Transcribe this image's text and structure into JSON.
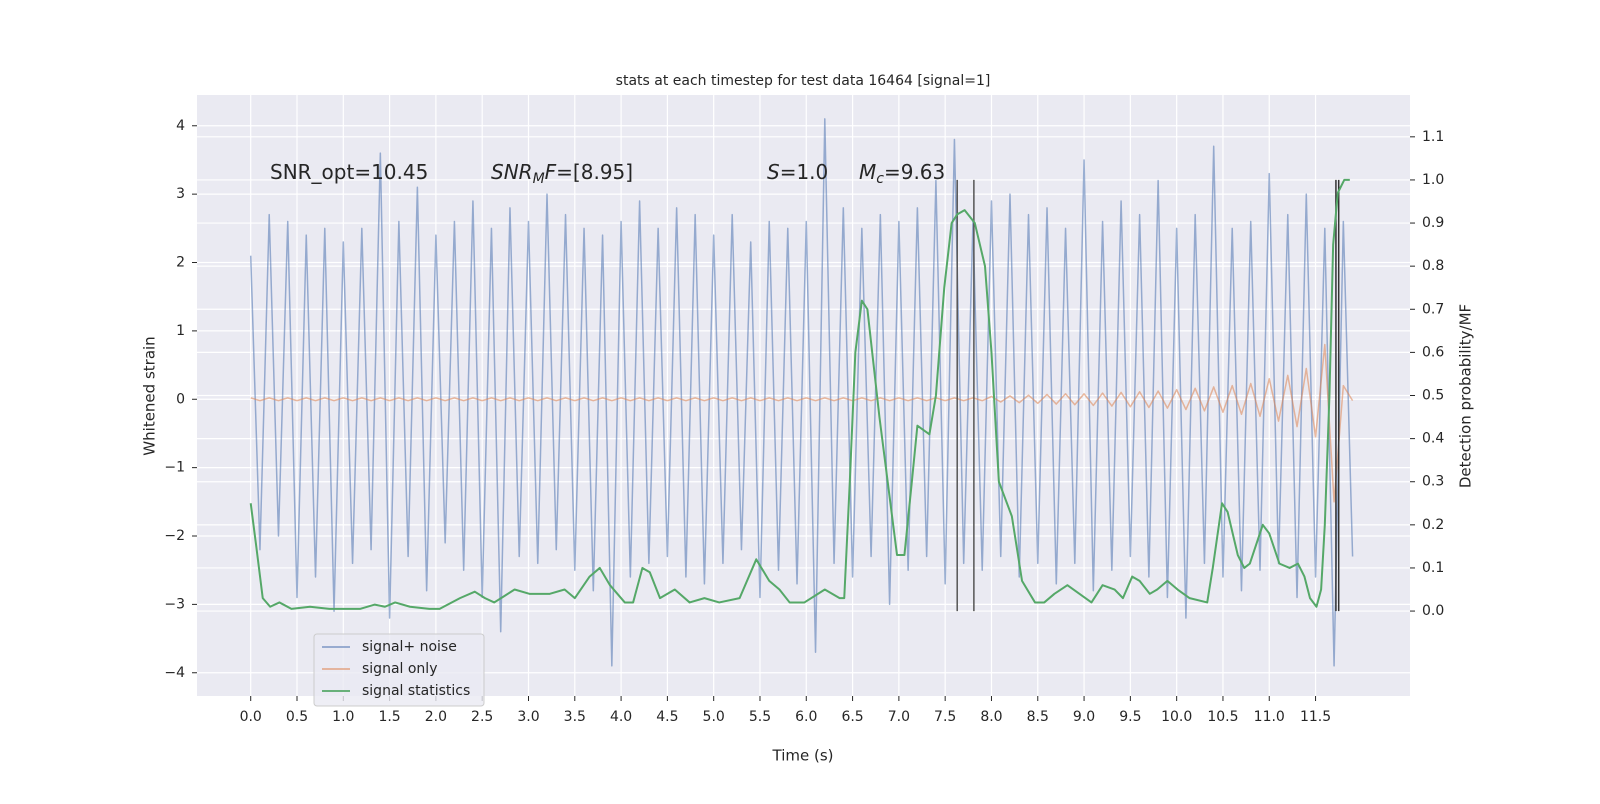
{
  "chart_data": {
    "type": "line",
    "title": "stats at each timestep for test data 16464 [signal=1]",
    "xlabel": "Time (s)",
    "ylabel": "Whitened strain",
    "y2label": "Detection probability/MF",
    "xlim": [
      -0.58,
      12.52
    ],
    "ylim": [
      -4.34,
      4.45
    ],
    "y2lim": [
      -0.197,
      1.197
    ],
    "xticks": [
      {
        "value": 0,
        "label": "0.0"
      },
      0.5,
      {
        "value": 1,
        "label": "1.0"
      },
      1.5,
      {
        "value": 2,
        "label": "2.0"
      },
      2.5,
      {
        "value": 3,
        "label": "3.0"
      },
      3.5,
      {
        "value": 4,
        "label": "4.0"
      },
      4.5,
      {
        "value": 5,
        "label": "5.0"
      },
      5.5,
      {
        "value": 6,
        "label": "6.0"
      },
      6.5,
      {
        "value": 7,
        "label": "7.0"
      },
      7.5,
      {
        "value": 8,
        "label": "8.0"
      },
      8.5,
      {
        "value": 9,
        "label": "9.0"
      },
      9.5,
      {
        "value": 10,
        "label": "10.0"
      },
      10.5,
      {
        "value": 11,
        "label": "11.0"
      },
      11.5
    ],
    "yticks": [
      {
        "value": -4,
        "label": "−4"
      },
      {
        "value": -3,
        "label": "−3"
      },
      {
        "value": -2,
        "label": "−2"
      },
      {
        "value": -1,
        "label": "−1"
      },
      0,
      1,
      2,
      3,
      4
    ],
    "y2ticks": [
      {
        "value": 0,
        "label": "0.0"
      },
      0.1,
      0.2,
      0.3,
      0.4,
      0.5,
      0.6,
      0.7,
      0.8,
      0.9,
      {
        "value": 1,
        "label": "1.0"
      },
      1.1
    ],
    "grid": true,
    "legend": "lower left",
    "annotations": [
      [
        {
          "text": "SNR_opt=10.45"
        }
      ],
      [
        {
          "text": "SNR",
          "style": "italic"
        },
        {
          "text": "M",
          "style": "sub"
        },
        {
          "text": "F",
          "style": "italic"
        },
        {
          "text": "=[8.95]"
        }
      ],
      [
        {
          "text": "S",
          "style": "italic"
        },
        {
          "text": "=1.0"
        }
      ],
      [
        {
          "text": "M",
          "style": "italic"
        },
        {
          "text": "c",
          "style": "sub"
        },
        {
          "text": "=9.63"
        }
      ]
    ],
    "vlines": {
      "x": [
        7.63,
        7.81,
        11.72,
        11.75
      ],
      "y2": [
        0,
        1.0
      ],
      "colors": [
        "#555555",
        "#555555",
        "#333333",
        "#333333"
      ]
    },
    "series": [
      {
        "name": "signal+ noise",
        "color": "#4c72b0",
        "axis": "y",
        "x": [
          0.0,
          0.1,
          0.2,
          0.3,
          0.4,
          0.5,
          0.6,
          0.7,
          0.8,
          0.9,
          1.0,
          1.1,
          1.2,
          1.3,
          1.4,
          1.5,
          1.6,
          1.7,
          1.8,
          1.9,
          2.0,
          2.1,
          2.2,
          2.3,
          2.4,
          2.5,
          2.6,
          2.7,
          2.8,
          2.9,
          3.0,
          3.1,
          3.2,
          3.3,
          3.4,
          3.5,
          3.6,
          3.7,
          3.8,
          3.9,
          4.0,
          4.1,
          4.2,
          4.3,
          4.4,
          4.5,
          4.6,
          4.7,
          4.8,
          4.9,
          5.0,
          5.1,
          5.2,
          5.3,
          5.4,
          5.5,
          5.6,
          5.7,
          5.8,
          5.9,
          6.0,
          6.1,
          6.2,
          6.3,
          6.4,
          6.5,
          6.6,
          6.7,
          6.8,
          6.9,
          7.0,
          7.1,
          7.2,
          7.3,
          7.4,
          7.5,
          7.6,
          7.7,
          7.8,
          7.9,
          8.0,
          8.1,
          8.2,
          8.3,
          8.4,
          8.5,
          8.6,
          8.7,
          8.8,
          8.9,
          9.0,
          9.1,
          9.2,
          9.3,
          9.4,
          9.5,
          9.6,
          9.7,
          9.8,
          9.9,
          10.0,
          10.1,
          10.2,
          10.3,
          10.4,
          10.5,
          10.6,
          10.7,
          10.8,
          10.9,
          11.0,
          11.1,
          11.2,
          11.3,
          11.4,
          11.5,
          11.6,
          11.7,
          11.8,
          11.9
        ],
        "values": [
          2.1,
          -2.2,
          2.7,
          -2.0,
          2.6,
          -2.9,
          2.4,
          -2.6,
          2.5,
          -3.1,
          2.3,
          -2.4,
          2.5,
          -2.2,
          3.6,
          -3.2,
          2.6,
          -2.3,
          3.1,
          -2.8,
          2.4,
          -2.1,
          2.6,
          -2.5,
          2.9,
          -2.9,
          2.5,
          -3.4,
          2.8,
          -2.3,
          2.6,
          -2.4,
          3.0,
          -2.2,
          2.7,
          -2.5,
          2.5,
          -2.8,
          2.4,
          -3.9,
          2.6,
          -2.6,
          2.9,
          -2.4,
          2.5,
          -2.3,
          2.8,
          -2.6,
          2.7,
          -2.7,
          2.4,
          -2.4,
          2.7,
          -2.2,
          2.3,
          -2.9,
          2.6,
          -2.5,
          2.5,
          -2.7,
          2.6,
          -3.7,
          4.1,
          -2.4,
          2.8,
          -2.6,
          2.5,
          -2.3,
          2.7,
          -3.0,
          2.6,
          -2.5,
          2.8,
          -2.3,
          3.2,
          -2.7,
          3.8,
          -2.4,
          2.6,
          -2.5,
          2.9,
          -2.3,
          3.0,
          -2.6,
          2.7,
          -2.4,
          2.8,
          -2.7,
          2.5,
          -2.4,
          3.5,
          -2.8,
          2.6,
          -2.5,
          2.9,
          -2.3,
          2.7,
          -2.6,
          3.2,
          -2.9,
          2.5,
          -3.2,
          2.7,
          -2.4,
          3.7,
          -2.6,
          2.5,
          -2.8,
          2.6,
          -2.5,
          3.3,
          -2.4,
          2.7,
          -2.9,
          3.0,
          -2.6,
          2.5,
          -3.9,
          2.6,
          -2.3
        ]
      },
      {
        "name": "signal only",
        "color": "#dd8452",
        "axis": "y",
        "x": [
          0.0,
          0.1,
          0.2,
          0.3,
          0.4,
          0.5,
          0.6,
          0.7,
          0.8,
          0.9,
          1.0,
          1.1,
          1.2,
          1.3,
          1.4,
          1.5,
          1.6,
          1.7,
          1.8,
          1.9,
          2.0,
          2.1,
          2.2,
          2.3,
          2.4,
          2.5,
          2.6,
          2.7,
          2.8,
          2.9,
          3.0,
          3.1,
          3.2,
          3.3,
          3.4,
          3.5,
          3.6,
          3.7,
          3.8,
          3.9,
          4.0,
          4.1,
          4.2,
          4.3,
          4.4,
          4.5,
          4.6,
          4.7,
          4.8,
          4.9,
          5.0,
          5.1,
          5.2,
          5.3,
          5.4,
          5.5,
          5.6,
          5.7,
          5.8,
          5.9,
          6.0,
          6.1,
          6.2,
          6.3,
          6.4,
          6.5,
          6.6,
          6.7,
          6.8,
          6.9,
          7.0,
          7.1,
          7.2,
          7.3,
          7.4,
          7.5,
          7.6,
          7.7,
          7.8,
          7.9,
          8.0,
          8.1,
          8.2,
          8.3,
          8.4,
          8.5,
          8.6,
          8.7,
          8.8,
          8.9,
          9.0,
          9.1,
          9.2,
          9.3,
          9.4,
          9.5,
          9.6,
          9.7,
          9.8,
          9.9,
          10.0,
          10.1,
          10.2,
          10.3,
          10.4,
          10.5,
          10.6,
          10.7,
          10.8,
          10.9,
          11.0,
          11.1,
          11.2,
          11.3,
          11.4,
          11.5,
          11.6,
          11.7,
          11.8,
          11.9
        ],
        "values": [
          0.02,
          -0.02,
          0.02,
          -0.02,
          0.02,
          -0.02,
          0.02,
          -0.02,
          0.02,
          -0.02,
          0.02,
          -0.02,
          0.02,
          -0.02,
          0.02,
          -0.02,
          0.02,
          -0.02,
          0.02,
          -0.02,
          0.02,
          -0.02,
          0.02,
          -0.02,
          0.02,
          -0.02,
          0.02,
          -0.02,
          0.02,
          -0.02,
          0.02,
          -0.02,
          0.02,
          -0.02,
          0.02,
          -0.02,
          0.02,
          -0.02,
          0.02,
          -0.02,
          0.02,
          -0.02,
          0.02,
          -0.02,
          0.02,
          -0.02,
          0.02,
          -0.02,
          0.02,
          -0.02,
          0.02,
          -0.02,
          0.02,
          -0.02,
          0.02,
          -0.02,
          0.02,
          -0.02,
          0.02,
          -0.02,
          0.02,
          -0.02,
          0.02,
          -0.02,
          0.02,
          -0.02,
          0.02,
          -0.02,
          0.02,
          -0.02,
          0.02,
          -0.02,
          0.02,
          -0.02,
          0.02,
          -0.02,
          0.02,
          -0.02,
          0.02,
          -0.02,
          0.04,
          -0.04,
          0.05,
          -0.05,
          0.06,
          -0.06,
          0.07,
          -0.07,
          0.08,
          -0.08,
          0.08,
          -0.09,
          0.09,
          -0.1,
          0.1,
          -0.11,
          0.11,
          -0.12,
          0.12,
          -0.13,
          0.14,
          -0.15,
          0.16,
          -0.17,
          0.18,
          -0.19,
          0.2,
          -0.22,
          0.23,
          -0.25,
          0.3,
          -0.32,
          0.35,
          -0.4,
          0.45,
          -0.55,
          0.8,
          -1.5,
          0.2,
          -0.02
        ]
      },
      {
        "name": "signal statistics",
        "color": "#55a868",
        "axis": "y2",
        "x": [
          0.0,
          0.06,
          0.13,
          0.21,
          0.31,
          0.44,
          0.64,
          0.85,
          1.18,
          1.34,
          1.45,
          1.56,
          1.72,
          1.93,
          2.04,
          2.26,
          2.42,
          2.53,
          2.63,
          2.74,
          2.85,
          3.01,
          3.23,
          3.39,
          3.5,
          3.66,
          3.77,
          3.88,
          4.04,
          4.13,
          4.23,
          4.31,
          4.42,
          4.58,
          4.74,
          4.9,
          5.06,
          5.28,
          5.46,
          5.6,
          5.71,
          5.82,
          5.98,
          6.2,
          6.36,
          6.41,
          6.47,
          6.53,
          6.6,
          6.66,
          6.79,
          6.98,
          7.06,
          7.14,
          7.2,
          7.33,
          7.4,
          7.49,
          7.57,
          7.63,
          7.71,
          7.82,
          7.93,
          8.0,
          8.08,
          8.22,
          8.33,
          8.47,
          8.57,
          8.68,
          8.82,
          8.95,
          9.08,
          9.2,
          9.33,
          9.42,
          9.52,
          9.6,
          9.71,
          9.79,
          9.9,
          10.01,
          10.14,
          10.33,
          10.39,
          10.49,
          10.55,
          10.66,
          10.73,
          10.79,
          10.93,
          11.0,
          11.11,
          11.22,
          11.31,
          11.38,
          11.44,
          11.51,
          11.56,
          11.6,
          11.65,
          11.69,
          11.74,
          11.81,
          11.87
        ],
        "values": [
          0.25,
          0.15,
          0.03,
          0.01,
          0.02,
          0.005,
          0.01,
          0.005,
          0.005,
          0.015,
          0.01,
          0.02,
          0.01,
          0.005,
          0.005,
          0.03,
          0.045,
          0.03,
          0.02,
          0.035,
          0.05,
          0.04,
          0.04,
          0.05,
          0.03,
          0.08,
          0.1,
          0.06,
          0.02,
          0.02,
          0.1,
          0.09,
          0.03,
          0.05,
          0.02,
          0.03,
          0.02,
          0.03,
          0.12,
          0.07,
          0.05,
          0.02,
          0.02,
          0.05,
          0.03,
          0.03,
          0.3,
          0.6,
          0.72,
          0.7,
          0.45,
          0.13,
          0.13,
          0.3,
          0.43,
          0.41,
          0.5,
          0.75,
          0.9,
          0.92,
          0.93,
          0.9,
          0.8,
          0.6,
          0.3,
          0.22,
          0.07,
          0.02,
          0.02,
          0.04,
          0.06,
          0.04,
          0.02,
          0.06,
          0.05,
          0.03,
          0.08,
          0.07,
          0.04,
          0.05,
          0.07,
          0.05,
          0.03,
          0.02,
          0.1,
          0.25,
          0.23,
          0.13,
          0.1,
          0.11,
          0.2,
          0.18,
          0.11,
          0.1,
          0.11,
          0.08,
          0.03,
          0.01,
          0.05,
          0.2,
          0.5,
          0.85,
          0.97,
          1.0,
          1.0
        ]
      }
    ]
  }
}
